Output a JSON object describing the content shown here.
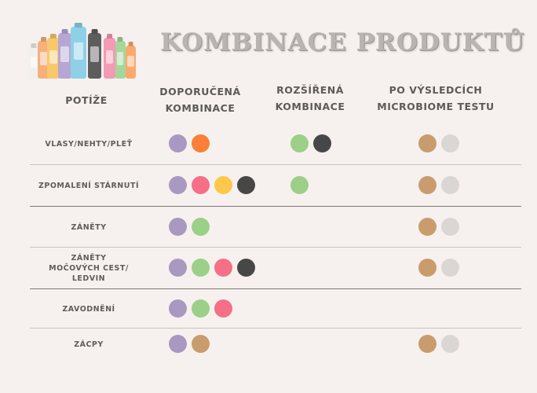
{
  "title": "KOMBINACE PRODUKTŮ",
  "headers": {
    "problems": "POTÍŽE",
    "recommended": "DOPORUČENÁ\nKOMBINACE",
    "extended": "ROZŠÍŘENÁ\nKOMBINACE",
    "microbiome": "PO VÝSLEDCÍCH\nMICROBIOME TESTU"
  },
  "colors": {
    "purple": "#a998c1",
    "orange": "#fb7f37",
    "green": "#9ccf87",
    "black": "#474747",
    "pink": "#f56f86",
    "yellow": "#fcc84a",
    "tan": "#c99c6e",
    "lightgray": "#dad6d4"
  },
  "bottles": [
    "#f2f0ee",
    "#f6b07c",
    "#f7c96c",
    "#b7a6d4",
    "#8ed0e8",
    "#5d5d5d",
    "#f39ab4",
    "#a7d69b",
    "#f9a96d"
  ],
  "rows": [
    {
      "label": "VLASY/NEHTY/PLEŤ",
      "recommended": [
        "purple",
        "orange"
      ],
      "extended": [
        "green",
        "black"
      ],
      "microbiome": [
        "tan",
        "lightgray"
      ]
    },
    {
      "label": "ZPOMALENÍ STÁRNUTÍ",
      "recommended": [
        "purple",
        "pink",
        "yellow",
        "black"
      ],
      "extended": [
        "green"
      ],
      "microbiome": [
        "tan",
        "lightgray"
      ]
    },
    {
      "label": "ZÁNĚTY",
      "recommended": [
        "purple",
        "green"
      ],
      "extended": [],
      "microbiome": [
        "tan",
        "lightgray"
      ]
    },
    {
      "label": "ZÁNĚTY\nMOČOVÝCH CEST/\nLEDVIN",
      "recommended": [
        "purple",
        "green",
        "pink",
        "black"
      ],
      "extended": [],
      "microbiome": [
        "tan",
        "lightgray"
      ]
    },
    {
      "label": "ZAVODNĚNÍ",
      "recommended": [
        "purple",
        "green",
        "pink"
      ],
      "extended": [],
      "microbiome": []
    },
    {
      "label": "ZÁCPY",
      "recommended": [
        "purple",
        "tan"
      ],
      "extended": [],
      "microbiome": [
        "tan",
        "lightgray"
      ]
    }
  ]
}
